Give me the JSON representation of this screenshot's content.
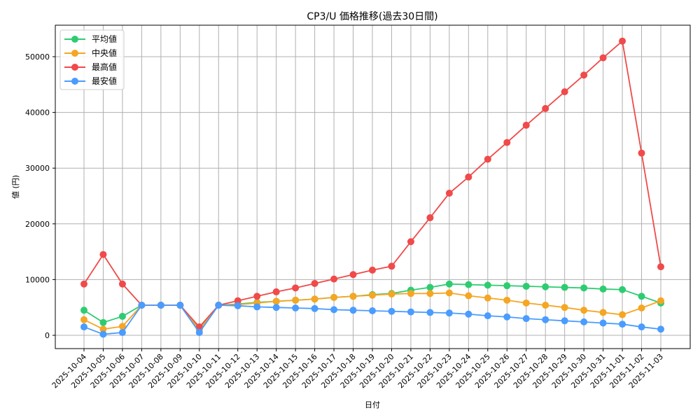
{
  "chart_data": {
    "type": "line",
    "title": "CP3/U 価格推移(過去30日間)",
    "xlabel": "日付",
    "ylabel": "値 (円)",
    "ylim": [
      -2500,
      55500
    ],
    "yticks": [
      0,
      10000,
      20000,
      30000,
      40000,
      50000
    ],
    "grid": true,
    "legend_position": "upper left",
    "categories": [
      "2025-10-04",
      "2025-10-05",
      "2025-10-06",
      "2025-10-07",
      "2025-10-08",
      "2025-10-09",
      "2025-10-10",
      "2025-10-11",
      "2025-10-12",
      "2025-10-13",
      "2025-10-14",
      "2025-10-15",
      "2025-10-16",
      "2025-10-17",
      "2025-10-18",
      "2025-10-19",
      "2025-10-20",
      "2025-10-21",
      "2025-10-22",
      "2025-10-23",
      "2025-10-24",
      "2025-10-25",
      "2025-10-26",
      "2025-10-27",
      "2025-10-28",
      "2025-10-29",
      "2025-10-30",
      "2025-10-31",
      "2025-11-01",
      "2025-11-02",
      "2025-11-03"
    ],
    "series": [
      {
        "name": "平均値",
        "color": "#2ecc71",
        "values": [
          4500,
          2300,
          3400,
          5400,
          5400,
          5400,
          1200,
          5400,
          5600,
          5900,
          6100,
          6300,
          6500,
          6800,
          7000,
          7300,
          7500,
          8100,
          8600,
          9200,
          9100,
          9000,
          8900,
          8800,
          8700,
          8600,
          8500,
          8300,
          8200,
          7000,
          5800
        ]
      },
      {
        "name": "中央値",
        "color": "#f5a623",
        "values": [
          2800,
          1100,
          1600,
          5400,
          5400,
          5400,
          1000,
          5400,
          5500,
          5800,
          6100,
          6300,
          6500,
          6800,
          7000,
          7200,
          7400,
          7500,
          7500,
          7600,
          7100,
          6700,
          6300,
          5800,
          5400,
          5000,
          4500,
          4100,
          3700,
          4900,
          6200
        ]
      },
      {
        "name": "最高値",
        "color": "#f04a4a",
        "values": [
          9200,
          14500,
          9200,
          5400,
          5400,
          5400,
          1500,
          5400,
          6200,
          7000,
          7800,
          8500,
          9300,
          10100,
          10900,
          11700,
          12400,
          16800,
          21100,
          25500,
          28400,
          31600,
          34600,
          37700,
          40700,
          43700,
          46700,
          49800,
          52800,
          32700,
          12300
        ]
      },
      {
        "name": "最安値",
        "color": "#4a9cff",
        "values": [
          1500,
          200,
          500,
          5400,
          5400,
          5400,
          500,
          5400,
          5300,
          5100,
          5000,
          4900,
          4800,
          4600,
          4500,
          4400,
          4300,
          4200,
          4100,
          4000,
          3800,
          3500,
          3300,
          3000,
          2800,
          2600,
          2400,
          2200,
          2000,
          1500,
          1100
        ]
      }
    ]
  }
}
